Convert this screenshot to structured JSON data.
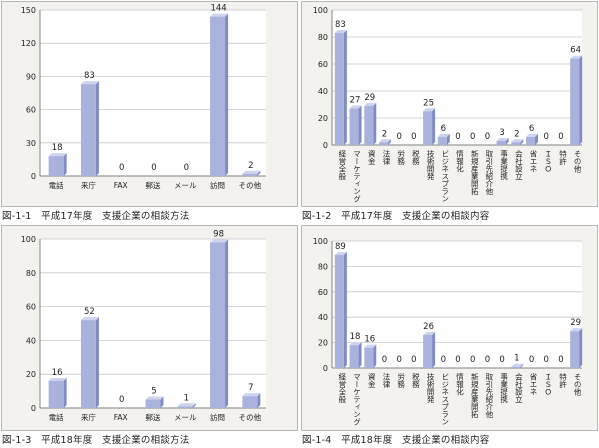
{
  "colors": {
    "bar_front": "#a9b2dc",
    "bar_side": "#7f8bc2",
    "bar_top": "#cfd4ee"
  },
  "chart_data": [
    {
      "type": "bar",
      "caption": "図-1-1　平成17年度　支援企業の相談方法",
      "orientation": "horizontal-labels",
      "ylim": [
        0,
        150
      ],
      "yticks": [
        0,
        30,
        60,
        90,
        120,
        150
      ],
      "categories": [
        "電話",
        "来庁",
        "FAX",
        "郵送",
        "メール",
        "訪問",
        "その他"
      ],
      "values": [
        18,
        83,
        0,
        0,
        0,
        144,
        2
      ],
      "grid": true
    },
    {
      "type": "bar",
      "caption": "図-1-2　平成17年度　支援企業の相談内容",
      "orientation": "vertical-labels",
      "ylim": [
        0,
        100
      ],
      "yticks": [
        0,
        20,
        40,
        60,
        80,
        100
      ],
      "categories": [
        "経営全般",
        "マーケティング",
        "資金",
        "法律",
        "労務",
        "税務",
        "技術開発",
        "ビジネスプラン",
        "情報化",
        "新規産業開拓",
        "取引先紹介他",
        "事業提携",
        "会社設立",
        "省エネ",
        "ＩＳＯ",
        "特許",
        "その他"
      ],
      "values": [
        83,
        27,
        29,
        2,
        0,
        0,
        25,
        6,
        0,
        0,
        0,
        3,
        2,
        6,
        0,
        0,
        64
      ],
      "grid": true
    },
    {
      "type": "bar",
      "caption": "図-1-3　平成18年度　支援企業の相談方法",
      "orientation": "horizontal-labels",
      "ylim": [
        0,
        100
      ],
      "yticks": [
        0,
        20,
        40,
        60,
        80,
        100
      ],
      "categories": [
        "電話",
        "来庁",
        "FAX",
        "郵送",
        "メール",
        "訪問",
        "その他"
      ],
      "values": [
        16,
        52,
        0,
        5,
        1,
        98,
        7
      ],
      "grid": true
    },
    {
      "type": "bar",
      "caption": "図-1-4　平成18年度　支援企業の相談内容",
      "orientation": "vertical-labels",
      "ylim": [
        0,
        100
      ],
      "yticks": [
        0,
        20,
        40,
        60,
        80,
        100
      ],
      "categories": [
        "経営全般",
        "マーケティング",
        "資金",
        "法律",
        "労務",
        "税務",
        "技術開発",
        "ビジネスプラン",
        "情報化",
        "新規産業開拓",
        "取引先紹介他",
        "事業提携",
        "会社設立",
        "省エネ",
        "ＩＳＯ",
        "特許",
        "その他"
      ],
      "values": [
        89,
        18,
        16,
        0,
        0,
        0,
        26,
        0,
        0,
        0,
        0,
        0,
        1,
        0,
        0,
        0,
        29
      ],
      "grid": true
    }
  ]
}
